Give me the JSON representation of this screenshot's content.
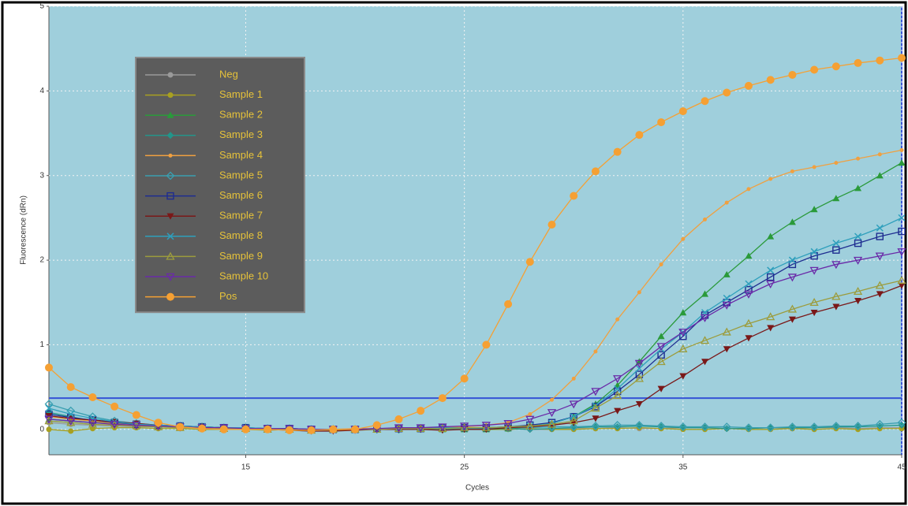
{
  "chart_data": {
    "type": "line",
    "xlabel": "Cycles",
    "ylabel": "Fluorescence (dRn)",
    "x": [
      6,
      7,
      8,
      9,
      10,
      11,
      12,
      13,
      14,
      15,
      16,
      17,
      18,
      19,
      20,
      21,
      22,
      23,
      24,
      25,
      26,
      27,
      28,
      29,
      30,
      31,
      32,
      33,
      34,
      35,
      36,
      37,
      38,
      39,
      40,
      41,
      42,
      43,
      44,
      45
    ],
    "xlim": [
      6,
      45
    ],
    "xticks": [
      15,
      25,
      35,
      45
    ],
    "ylim": [
      -0.3,
      5
    ],
    "yticks": [
      0,
      1,
      2,
      3,
      4,
      5
    ],
    "grid": true,
    "legend": "upper left",
    "threshold": 0.37,
    "threshold_color": "#3553d6",
    "series": [
      {
        "name": "Neg",
        "color": "#9a9a9a",
        "marker": "circle",
        "values": [
          0.08,
          0.06,
          0.05,
          0.04,
          0.03,
          0.03,
          0.02,
          0.02,
          0.02,
          0.01,
          0.01,
          0.01,
          0.0,
          0.0,
          0.0,
          0.01,
          0.01,
          0.0,
          0.0,
          0.0,
          0.01,
          0.01,
          0.0,
          0.0,
          0.01,
          0.01,
          0.02,
          0.01,
          0.01,
          0.02,
          0.02,
          0.01,
          0.01,
          0.02,
          0.01,
          0.02,
          0.02,
          0.01,
          0.02,
          0.02
        ]
      },
      {
        "name": "Sample 1",
        "color": "#a8a020",
        "marker": "circle",
        "values": [
          0.0,
          -0.02,
          0.01,
          0.02,
          0.02,
          0.01,
          0.01,
          0.0,
          0.0,
          0.0,
          -0.01,
          0.0,
          0.0,
          -0.01,
          0.0,
          0.0,
          0.01,
          0.0,
          0.0,
          0.0,
          0.0,
          0.0,
          0.01,
          0.0,
          0.0,
          0.01,
          0.01,
          0.02,
          0.01,
          0.0,
          0.0,
          0.01,
          0.0,
          0.0,
          0.01,
          0.0,
          0.01,
          0.0,
          0.01,
          0.01
        ]
      },
      {
        "name": "Sample 2",
        "color": "#2a9a3a",
        "marker": "triangle",
        "values": [
          0.12,
          0.1,
          0.08,
          0.07,
          0.05,
          0.04,
          0.03,
          0.02,
          0.02,
          0.01,
          0.01,
          0.01,
          0.0,
          0.0,
          0.0,
          0.0,
          0.01,
          0.01,
          0.0,
          0.0,
          0.0,
          0.01,
          0.03,
          0.07,
          0.15,
          0.3,
          0.52,
          0.8,
          1.1,
          1.38,
          1.6,
          1.83,
          2.05,
          2.28,
          2.45,
          2.6,
          2.73,
          2.85,
          3.0,
          3.15
        ]
      },
      {
        "name": "Sample 3",
        "color": "#23958a",
        "marker": "diamond",
        "values": [
          0.2,
          0.15,
          0.1,
          0.07,
          0.05,
          0.04,
          0.03,
          0.02,
          0.02,
          0.01,
          0.01,
          0.0,
          0.0,
          0.0,
          0.0,
          0.0,
          0.01,
          0.0,
          0.0,
          0.0,
          0.01,
          0.01,
          0.0,
          0.01,
          0.02,
          0.03,
          0.03,
          0.04,
          0.03,
          0.02,
          0.02,
          0.01,
          0.01,
          0.02,
          0.02,
          0.02,
          0.03,
          0.03,
          0.04,
          0.05
        ]
      },
      {
        "name": "Sample 4",
        "color": "#f0a040",
        "marker": "plus",
        "values": [
          0.15,
          0.12,
          0.1,
          0.07,
          0.05,
          0.04,
          0.03,
          0.02,
          0.02,
          0.01,
          0.0,
          0.0,
          0.0,
          0.0,
          0.01,
          0.01,
          0.01,
          0.02,
          0.02,
          0.03,
          0.05,
          0.08,
          0.18,
          0.35,
          0.6,
          0.92,
          1.3,
          1.62,
          1.95,
          2.25,
          2.48,
          2.68,
          2.84,
          2.96,
          3.05,
          3.1,
          3.15,
          3.2,
          3.25,
          3.3
        ]
      },
      {
        "name": "Sample 5",
        "color": "#3a9fb0",
        "marker": "diamond-open",
        "values": [
          0.3,
          0.22,
          0.15,
          0.1,
          0.07,
          0.05,
          0.04,
          0.03,
          0.02,
          0.02,
          0.01,
          0.01,
          0.0,
          0.0,
          0.0,
          0.0,
          0.0,
          0.01,
          0.01,
          0.01,
          0.02,
          0.02,
          0.02,
          0.03,
          0.03,
          0.04,
          0.05,
          0.05,
          0.04,
          0.03,
          0.03,
          0.03,
          0.02,
          0.02,
          0.03,
          0.03,
          0.04,
          0.04,
          0.06,
          0.08
        ]
      },
      {
        "name": "Sample 6",
        "color": "#1e2c90",
        "marker": "square-open",
        "values": [
          0.18,
          0.14,
          0.11,
          0.08,
          0.06,
          0.05,
          0.04,
          0.03,
          0.02,
          0.02,
          0.01,
          0.01,
          0.0,
          0.0,
          0.0,
          0.01,
          0.01,
          0.01,
          0.02,
          0.02,
          0.02,
          0.03,
          0.05,
          0.08,
          0.15,
          0.27,
          0.45,
          0.65,
          0.88,
          1.1,
          1.35,
          1.5,
          1.65,
          1.8,
          1.95,
          2.05,
          2.12,
          2.2,
          2.28,
          2.34
        ]
      },
      {
        "name": "Sample 7",
        "color": "#7a1818",
        "marker": "triangle-down",
        "values": [
          0.16,
          0.13,
          0.11,
          0.09,
          0.07,
          0.05,
          0.04,
          0.03,
          0.02,
          0.01,
          0.0,
          -0.01,
          -0.02,
          -0.02,
          -0.01,
          0.0,
          0.0,
          0.0,
          -0.01,
          0.0,
          0.0,
          0.02,
          0.03,
          0.05,
          0.08,
          0.13,
          0.22,
          0.3,
          0.48,
          0.63,
          0.8,
          0.95,
          1.08,
          1.2,
          1.3,
          1.38,
          1.45,
          1.52,
          1.6,
          1.7
        ]
      },
      {
        "name": "Sample 8",
        "color": "#2e9fbc",
        "marker": "x",
        "values": [
          0.25,
          0.18,
          0.13,
          0.09,
          0.06,
          0.05,
          0.04,
          0.03,
          0.02,
          0.02,
          0.01,
          0.01,
          0.0,
          0.0,
          0.0,
          0.01,
          0.01,
          0.01,
          0.02,
          0.02,
          0.02,
          0.03,
          0.04,
          0.07,
          0.15,
          0.28,
          0.48,
          0.72,
          0.95,
          1.15,
          1.38,
          1.55,
          1.72,
          1.88,
          2.0,
          2.1,
          2.2,
          2.28,
          2.38,
          2.5
        ]
      },
      {
        "name": "Sample 9",
        "color": "#9c9c3c",
        "marker": "triangle-open",
        "values": [
          0.1,
          0.08,
          0.06,
          0.05,
          0.04,
          0.03,
          0.02,
          0.02,
          0.01,
          0.01,
          0.0,
          0.0,
          -0.01,
          0.0,
          0.0,
          0.0,
          0.01,
          0.01,
          0.01,
          0.02,
          0.02,
          0.03,
          0.04,
          0.06,
          0.1,
          0.25,
          0.4,
          0.6,
          0.8,
          0.95,
          1.05,
          1.15,
          1.25,
          1.33,
          1.42,
          1.5,
          1.57,
          1.63,
          1.7,
          1.76
        ]
      },
      {
        "name": "Sample 10",
        "color": "#6a2aa8",
        "marker": "triangle-down-open",
        "values": [
          0.12,
          0.1,
          0.08,
          0.06,
          0.05,
          0.04,
          0.03,
          0.02,
          0.02,
          0.01,
          0.01,
          0.01,
          0.0,
          0.0,
          0.0,
          0.01,
          0.02,
          0.02,
          0.03,
          0.04,
          0.05,
          0.07,
          0.12,
          0.2,
          0.3,
          0.45,
          0.6,
          0.78,
          0.98,
          1.15,
          1.32,
          1.47,
          1.6,
          1.72,
          1.8,
          1.88,
          1.95,
          2.0,
          2.05,
          2.1
        ]
      },
      {
        "name": "Pos",
        "color": "#f5a033",
        "marker": "circle-large",
        "values": [
          0.73,
          0.5,
          0.38,
          0.27,
          0.17,
          0.08,
          0.03,
          0.01,
          0.0,
          0.0,
          0.0,
          -0.01,
          -0.01,
          0.0,
          0.0,
          0.05,
          0.12,
          0.22,
          0.37,
          0.6,
          1.0,
          1.48,
          1.98,
          2.42,
          2.76,
          3.05,
          3.28,
          3.48,
          3.63,
          3.76,
          3.88,
          3.98,
          4.06,
          4.13,
          4.19,
          4.25,
          4.29,
          4.33,
          4.36,
          4.39
        ]
      }
    ]
  }
}
